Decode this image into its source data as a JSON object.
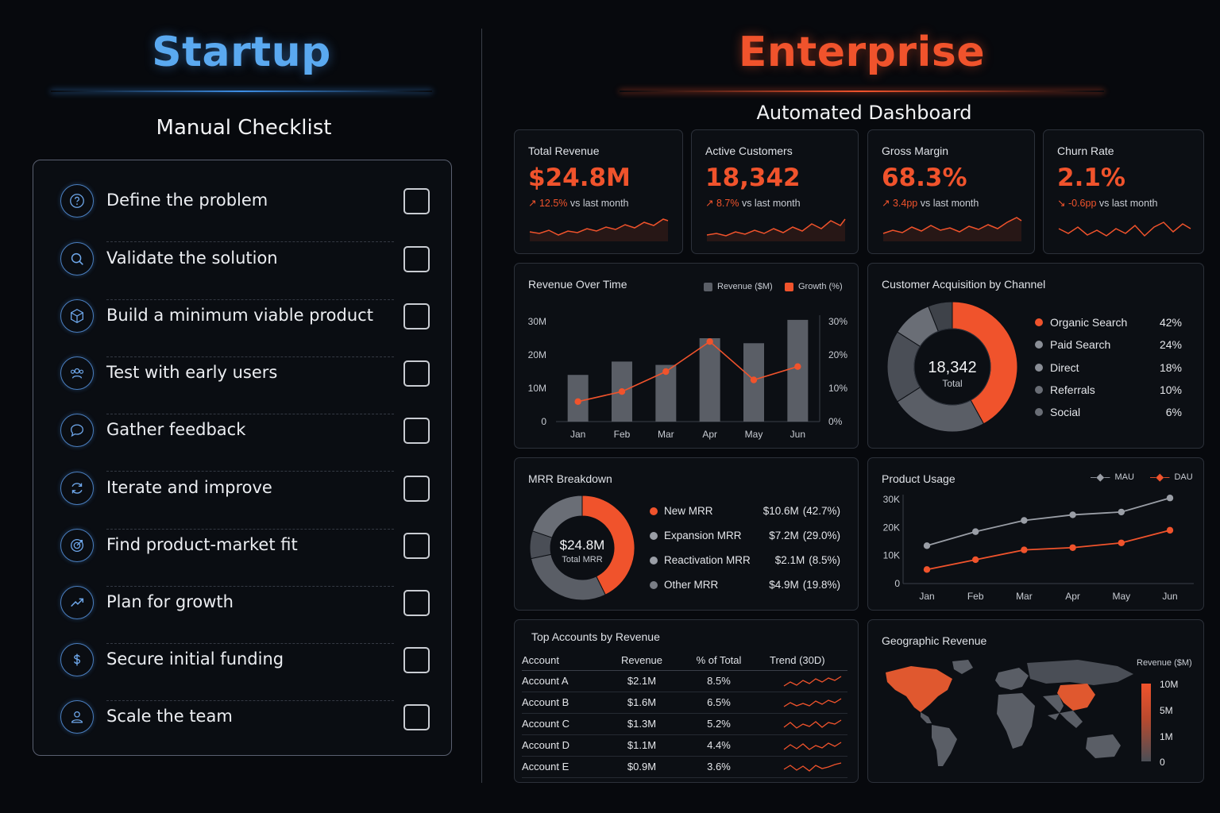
{
  "startup": {
    "title": "Startup",
    "subtitle": "Manual Checklist",
    "items": [
      {
        "label": "Define the problem",
        "icon": "question-icon"
      },
      {
        "label": "Validate the solution",
        "icon": "search-icon"
      },
      {
        "label": "Build a minimum viable product",
        "icon": "cube-icon"
      },
      {
        "label": "Test with early users",
        "icon": "users-icon"
      },
      {
        "label": "Gather feedback",
        "icon": "chat-bubble-icon"
      },
      {
        "label": "Iterate and improve",
        "icon": "refresh-icon"
      },
      {
        "label": "Find product-market fit",
        "icon": "target-icon"
      },
      {
        "label": "Plan for growth",
        "icon": "trend-up-icon"
      },
      {
        "label": "Secure initial funding",
        "icon": "dollar-icon"
      },
      {
        "label": "Scale the team",
        "icon": "person-icon"
      }
    ]
  },
  "enterprise": {
    "title": "Enterprise",
    "subtitle": "Automated Dashboard",
    "kpis": [
      {
        "label": "Total Revenue",
        "value": "$24.8M",
        "delta": "↗ 12.5%",
        "suffix": "vs last month"
      },
      {
        "label": "Active Customers",
        "value": "18,342",
        "delta": "↗ 8.7%",
        "suffix": "vs last month"
      },
      {
        "label": "Gross Margin",
        "value": "68.3%",
        "delta": "↗ 3.4pp",
        "suffix": "vs last month"
      },
      {
        "label": "Churn Rate",
        "value": "2.1%",
        "delta": "↘ -0.6pp",
        "suffix": "vs last month"
      }
    ]
  },
  "colors": {
    "accent": "#f0532c",
    "blue": "#5aa9f0",
    "gray_bar": "#5a5e66"
  },
  "chart_data": [
    {
      "type": "bar",
      "title": "Revenue Over Time",
      "categories": [
        "Jan",
        "Feb",
        "Mar",
        "Apr",
        "May",
        "Jun"
      ],
      "series": [
        {
          "name": "Revenue ($M)",
          "values": [
            14,
            18,
            17,
            25,
            23.5,
            30.5
          ],
          "axis": "left"
        },
        {
          "name": "Growth (%)",
          "values": [
            6,
            9,
            15,
            24,
            12.5,
            16.5
          ],
          "axis": "right",
          "kind": "line"
        }
      ],
      "yticks_left": [
        "30M",
        "20M",
        "10M",
        "0"
      ],
      "yticks_right": [
        "30%",
        "20%",
        "10%",
        "0%"
      ],
      "ylim": [
        0,
        30
      ]
    },
    {
      "type": "pie",
      "title": "Customer Acquisition by Channel",
      "center_value": "18,342",
      "center_label": "Total",
      "slices": [
        {
          "name": "Organic Search",
          "pct_label": "42%",
          "value": 42
        },
        {
          "name": "Paid Search",
          "pct_label": "24%",
          "value": 24
        },
        {
          "name": "Direct",
          "pct_label": "18%",
          "value": 18
        },
        {
          "name": "Referrals",
          "pct_label": "10%",
          "value": 10
        },
        {
          "name": "Social",
          "pct_label": "6%",
          "value": 6
        }
      ]
    },
    {
      "type": "pie",
      "title": "MRR Breakdown",
      "center_value": "$24.8M",
      "center_label": "Total MRR",
      "slices": [
        {
          "name": "New MRR",
          "amount": "$10.6M",
          "pct_label": "(42.7%)",
          "value": 42.7
        },
        {
          "name": "Expansion MRR",
          "amount": "$7.2M",
          "pct_label": "(29.0%)",
          "value": 29.0
        },
        {
          "name": "Reactivation MRR",
          "amount": "$2.1M",
          "pct_label": "(8.5%)",
          "value": 8.5
        },
        {
          "name": "Other MRR",
          "amount": "$4.9M",
          "pct_label": "(19.8%)",
          "value": 19.8
        }
      ]
    },
    {
      "type": "line",
      "title": "Product Usage",
      "categories": [
        "Jan",
        "Feb",
        "Mar",
        "Apr",
        "May",
        "Jun"
      ],
      "series": [
        {
          "name": "MAU",
          "values": [
            13500,
            18500,
            22500,
            24500,
            25500,
            30500
          ]
        },
        {
          "name": "DAU",
          "values": [
            5000,
            8500,
            12000,
            12800,
            14500,
            19000
          ]
        }
      ],
      "yticks": [
        "30K",
        "20K",
        "10K",
        "0"
      ],
      "ylim": [
        0,
        30000
      ]
    },
    {
      "type": "table",
      "title": "Top Accounts by Revenue",
      "columns": [
        "Account",
        "Revenue",
        "% of Total",
        "Trend (30D)"
      ],
      "rows": [
        [
          "Account A",
          "$2.1M",
          "8.5%"
        ],
        [
          "Account B",
          "$1.6M",
          "6.5%"
        ],
        [
          "Account C",
          "$1.3M",
          "5.2%"
        ],
        [
          "Account D",
          "$1.1M",
          "4.4%"
        ],
        [
          "Account E",
          "$0.9M",
          "3.6%"
        ]
      ]
    },
    {
      "type": "heatmap",
      "title": "Geographic Revenue",
      "legend_title": "Revenue ($M)",
      "legend_ticks": [
        "10M",
        "5M",
        "1M",
        "0"
      ],
      "highlighted_regions": [
        "North America",
        "China"
      ]
    }
  ]
}
